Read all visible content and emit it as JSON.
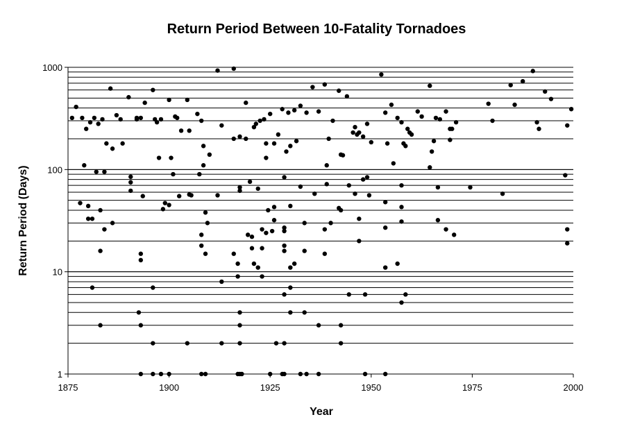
{
  "chart_data": {
    "type": "scatter",
    "title": "Return Period Between 10-Fatality Tornadoes",
    "xlabel": "Year",
    "ylabel": "Return Period (Days)",
    "xlim": [
      1875,
      2000
    ],
    "ylim": [
      1,
      1000
    ],
    "y_scale": "log",
    "x_ticks": [
      "1875",
      "1900",
      "1925",
      "1950",
      "1975",
      "2000"
    ],
    "y_ticks": [
      "1",
      "10",
      "100",
      "1000"
    ],
    "grid": "horizontal minor log gridlines",
    "marker_color": "#000000",
    "points": [
      [
        1876.0,
        320
      ],
      [
        1877.0,
        410
      ],
      [
        1878.0,
        47
      ],
      [
        1878.5,
        320
      ],
      [
        1879.0,
        110
      ],
      [
        1879.5,
        250
      ],
      [
        1880.0,
        44
      ],
      [
        1880.0,
        33
      ],
      [
        1880.5,
        290
      ],
      [
        1881.0,
        33
      ],
      [
        1881.0,
        7
      ],
      [
        1881.5,
        320
      ],
      [
        1882.0,
        95
      ],
      [
        1882.5,
        280
      ],
      [
        1883.0,
        3
      ],
      [
        1883.0,
        16
      ],
      [
        1883.0,
        40
      ],
      [
        1883.5,
        310
      ],
      [
        1884.0,
        26
      ],
      [
        1884.0,
        95
      ],
      [
        1884.5,
        180
      ],
      [
        1885.5,
        620
      ],
      [
        1886.0,
        160
      ],
      [
        1886.0,
        30
      ],
      [
        1887.0,
        340
      ],
      [
        1888.0,
        310
      ],
      [
        1888.5,
        180
      ],
      [
        1890.0,
        510
      ],
      [
        1890.5,
        75
      ],
      [
        1890.5,
        85
      ],
      [
        1890.5,
        62
      ],
      [
        1892.0,
        320
      ],
      [
        1892.0,
        310
      ],
      [
        1892.5,
        4
      ],
      [
        1893.0,
        320
      ],
      [
        1893.0,
        15
      ],
      [
        1893.0,
        13
      ],
      [
        1893.0,
        3
      ],
      [
        1893.0,
        1
      ],
      [
        1893.5,
        55
      ],
      [
        1894.0,
        450
      ],
      [
        1896.0,
        600
      ],
      [
        1896.0,
        7
      ],
      [
        1896.0,
        2
      ],
      [
        1896.0,
        1
      ],
      [
        1896.5,
        310
      ],
      [
        1897.0,
        290
      ],
      [
        1897.5,
        130
      ],
      [
        1898.0,
        310
      ],
      [
        1898.0,
        1
      ],
      [
        1898.5,
        41
      ],
      [
        1899.0,
        47
      ],
      [
        1900.0,
        480
      ],
      [
        1900.0,
        1
      ],
      [
        1900.0,
        45
      ],
      [
        1900.5,
        130
      ],
      [
        1901.0,
        90
      ],
      [
        1901.5,
        330
      ],
      [
        1902.0,
        320
      ],
      [
        1902.5,
        55
      ],
      [
        1903.0,
        240
      ],
      [
        1904.5,
        480
      ],
      [
        1904.5,
        2
      ],
      [
        1905.0,
        57
      ],
      [
        1905.0,
        240
      ],
      [
        1905.5,
        56
      ],
      [
        1907.0,
        350
      ],
      [
        1907.5,
        90
      ],
      [
        1908.0,
        300
      ],
      [
        1908.0,
        23
      ],
      [
        1908.0,
        18
      ],
      [
        1908.0,
        1
      ],
      [
        1908.5,
        110
      ],
      [
        1908.5,
        170
      ],
      [
        1909.0,
        15
      ],
      [
        1909.0,
        38
      ],
      [
        1909.0,
        1
      ],
      [
        1909.5,
        30
      ],
      [
        1910.0,
        140
      ],
      [
        1912.0,
        930
      ],
      [
        1912.0,
        56
      ],
      [
        1913.0,
        270
      ],
      [
        1913.0,
        8
      ],
      [
        1913.0,
        2
      ],
      [
        1916.0,
        970
      ],
      [
        1916.0,
        15
      ],
      [
        1916.0,
        200
      ],
      [
        1917.0,
        1
      ],
      [
        1917.0,
        9
      ],
      [
        1917.0,
        12
      ],
      [
        1917.5,
        210
      ],
      [
        1917.5,
        67
      ],
      [
        1917.5,
        62
      ],
      [
        1917.5,
        4
      ],
      [
        1917.5,
        3
      ],
      [
        1917.5,
        2
      ],
      [
        1917.5,
        1
      ],
      [
        1918.0,
        1
      ],
      [
        1919.0,
        450
      ],
      [
        1919.0,
        200
      ],
      [
        1919.5,
        23
      ],
      [
        1920.0,
        76
      ],
      [
        1920.5,
        22
      ],
      [
        1920.5,
        17
      ],
      [
        1921.0,
        260
      ],
      [
        1921.0,
        12
      ],
      [
        1921.5,
        280
      ],
      [
        1922.0,
        65
      ],
      [
        1922.0,
        11
      ],
      [
        1922.5,
        300
      ],
      [
        1923.0,
        26
      ],
      [
        1923.0,
        9
      ],
      [
        1923.0,
        17
      ],
      [
        1923.5,
        310
      ],
      [
        1924.0,
        180
      ],
      [
        1924.0,
        130
      ],
      [
        1924.0,
        24
      ],
      [
        1924.5,
        40
      ],
      [
        1925.0,
        350
      ],
      [
        1925.0,
        1
      ],
      [
        1925.5,
        25
      ],
      [
        1926.0,
        43
      ],
      [
        1926.0,
        32
      ],
      [
        1926.0,
        180
      ],
      [
        1926.5,
        2
      ],
      [
        1927.0,
        220
      ],
      [
        1928.0,
        390
      ],
      [
        1928.5,
        84
      ],
      [
        1928.5,
        27
      ],
      [
        1928.5,
        25
      ],
      [
        1928.5,
        16
      ],
      [
        1928.5,
        18
      ],
      [
        1928.5,
        6
      ],
      [
        1928.5,
        2
      ],
      [
        1928.5,
        1
      ],
      [
        1928.0,
        1
      ],
      [
        1929.0,
        150
      ],
      [
        1929.5,
        360
      ],
      [
        1930.0,
        170
      ],
      [
        1930.0,
        44
      ],
      [
        1930.0,
        7
      ],
      [
        1930.0,
        11
      ],
      [
        1930.0,
        4
      ],
      [
        1931.0,
        380
      ],
      [
        1931.0,
        12
      ],
      [
        1931.5,
        190
      ],
      [
        1932.5,
        420
      ],
      [
        1932.5,
        68
      ],
      [
        1932.5,
        1
      ],
      [
        1933.5,
        30
      ],
      [
        1933.5,
        16
      ],
      [
        1933.5,
        4
      ],
      [
        1934.0,
        360
      ],
      [
        1934.0,
        1
      ],
      [
        1935.5,
        640
      ],
      [
        1936.0,
        58
      ],
      [
        1937.0,
        370
      ],
      [
        1937.0,
        3
      ],
      [
        1937.0,
        1
      ],
      [
        1938.5,
        680
      ],
      [
        1938.5,
        26
      ],
      [
        1938.5,
        15
      ],
      [
        1939.0,
        72
      ],
      [
        1939.0,
        110
      ],
      [
        1939.5,
        200
      ],
      [
        1940.0,
        30
      ],
      [
        1940.5,
        300
      ],
      [
        1942.0,
        590
      ],
      [
        1942.0,
        42
      ],
      [
        1942.5,
        40
      ],
      [
        1942.5,
        3
      ],
      [
        1942.5,
        2
      ],
      [
        1942.5,
        140
      ],
      [
        1943.0,
        138
      ],
      [
        1944.0,
        520
      ],
      [
        1944.5,
        70
      ],
      [
        1944.5,
        6
      ],
      [
        1945.5,
        230
      ],
      [
        1946.0,
        260
      ],
      [
        1946.0,
        58
      ],
      [
        1946.5,
        220
      ],
      [
        1947.0,
        230
      ],
      [
        1947.0,
        33
      ],
      [
        1947.0,
        20
      ],
      [
        1948.0,
        210
      ],
      [
        1948.0,
        80
      ],
      [
        1948.5,
        6
      ],
      [
        1948.5,
        1
      ],
      [
        1949.0,
        280
      ],
      [
        1949.0,
        84
      ],
      [
        1949.5,
        56
      ],
      [
        1950.0,
        185
      ],
      [
        1952.5,
        850
      ],
      [
        1953.5,
        360
      ],
      [
        1953.5,
        48
      ],
      [
        1953.5,
        27
      ],
      [
        1953.5,
        11
      ],
      [
        1953.5,
        1
      ],
      [
        1954.0,
        180
      ],
      [
        1955.0,
        430
      ],
      [
        1955.5,
        115
      ],
      [
        1956.5,
        320
      ],
      [
        1956.5,
        12
      ],
      [
        1957.5,
        290
      ],
      [
        1957.5,
        70
      ],
      [
        1957.5,
        43
      ],
      [
        1957.5,
        31
      ],
      [
        1957.5,
        5
      ],
      [
        1958.0,
        180
      ],
      [
        1958.5,
        170
      ],
      [
        1958.5,
        6
      ],
      [
        1959.0,
        250
      ],
      [
        1959.5,
        230
      ],
      [
        1960.0,
        220
      ],
      [
        1961.5,
        370
      ],
      [
        1962.5,
        330
      ],
      [
        1964.5,
        660
      ],
      [
        1964.5,
        105
      ],
      [
        1965.0,
        150
      ],
      [
        1965.5,
        190
      ],
      [
        1966.0,
        320
      ],
      [
        1966.5,
        32
      ],
      [
        1966.5,
        67
      ],
      [
        1967.0,
        310
      ],
      [
        1968.5,
        370
      ],
      [
        1968.5,
        26
      ],
      [
        1969.5,
        250
      ],
      [
        1969.5,
        195
      ],
      [
        1970.0,
        250
      ],
      [
        1970.5,
        23
      ],
      [
        1971.0,
        290
      ],
      [
        1974.5,
        67
      ],
      [
        1979.0,
        440
      ],
      [
        1980.0,
        300
      ],
      [
        1982.5,
        58
      ],
      [
        1984.5,
        670
      ],
      [
        1985.5,
        430
      ],
      [
        1987.5,
        730
      ],
      [
        1990.0,
        920
      ],
      [
        1991.0,
        290
      ],
      [
        1991.5,
        250
      ],
      [
        1993.0,
        580
      ],
      [
        1994.5,
        490
      ],
      [
        1998.0,
        88
      ],
      [
        1998.5,
        270
      ],
      [
        1998.5,
        26
      ],
      [
        1998.5,
        19
      ],
      [
        1999.5,
        390
      ]
    ]
  }
}
